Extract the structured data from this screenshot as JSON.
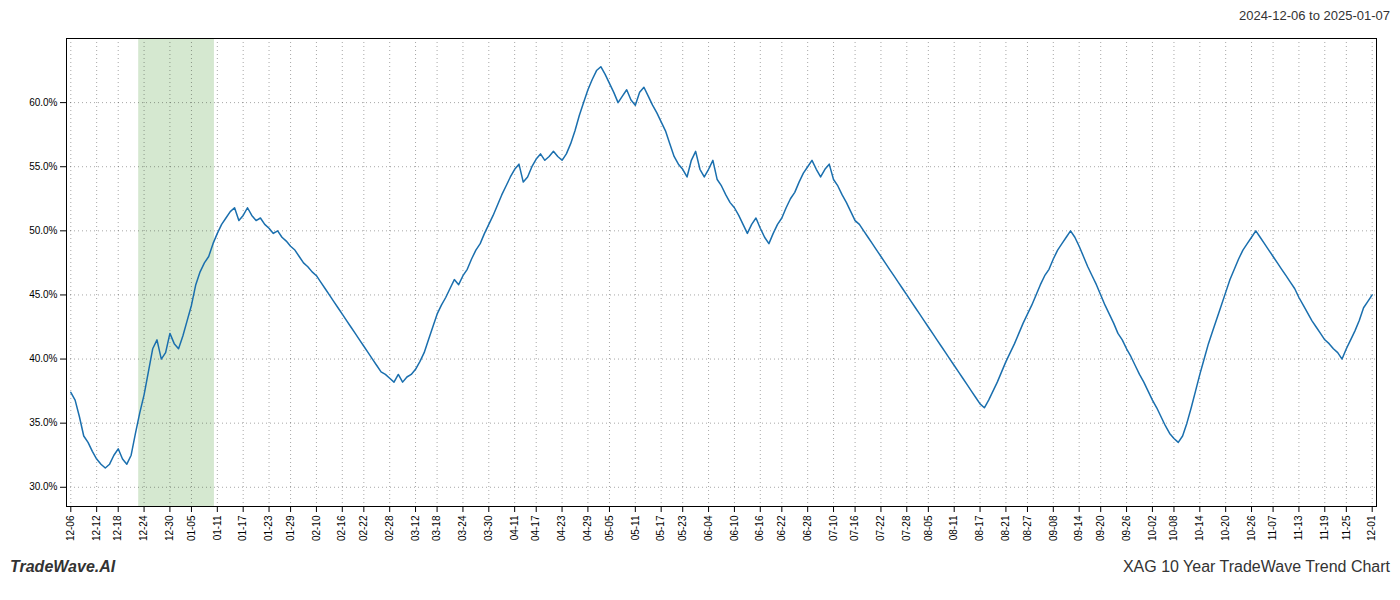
{
  "chart_data": {
    "type": "line",
    "title": "XAG 10 Year TradeWave Trend Chart",
    "subtitle": "2024-12-06 to 2025-01-07",
    "annotations": [
      "TradeWave.AI"
    ],
    "color": "#1a6fae",
    "grid": true,
    "ylim": [
      0.285,
      0.65
    ],
    "yticks": [
      {
        "value": 0.3,
        "label": "30.0%"
      },
      {
        "value": 0.35,
        "label": "35.0%"
      },
      {
        "value": 0.4,
        "label": "40.0%"
      },
      {
        "value": 0.45,
        "label": "45.0%"
      },
      {
        "value": 0.5,
        "label": "50.0%"
      },
      {
        "value": 0.55,
        "label": "55.0%"
      },
      {
        "value": 0.6,
        "label": "60.0%"
      }
    ],
    "shade": {
      "x": [
        15.756,
        33.33
      ],
      "color": "#d5e8d0"
    },
    "categories": [
      "12-06",
      null,
      null,
      null,
      null,
      null,
      "12-12",
      null,
      null,
      null,
      null,
      "12-18",
      null,
      null,
      null,
      null,
      null,
      "12-24",
      null,
      null,
      null,
      null,
      null,
      "12-30",
      null,
      null,
      null,
      null,
      "01-05",
      null,
      null,
      null,
      null,
      null,
      "01-11",
      null,
      null,
      null,
      null,
      null,
      "01-17",
      null,
      null,
      null,
      null,
      null,
      "01-23",
      null,
      null,
      null,
      null,
      "01-29",
      null,
      null,
      null,
      null,
      null,
      "02-10",
      null,
      null,
      null,
      null,
      null,
      "02-16",
      null,
      null,
      null,
      null,
      "02-22",
      null,
      null,
      null,
      null,
      null,
      "02-28",
      null,
      null,
      null,
      null,
      null,
      "03-12",
      null,
      null,
      null,
      null,
      "03-18",
      null,
      null,
      null,
      null,
      null,
      "03-24",
      null,
      null,
      null,
      null,
      null,
      "03-30",
      null,
      null,
      null,
      null,
      null,
      "04-11",
      null,
      null,
      null,
      null,
      "04-17",
      null,
      null,
      null,
      null,
      null,
      "04-23",
      null,
      null,
      null,
      null,
      null,
      "04-29",
      null,
      null,
      null,
      null,
      "05-05",
      null,
      null,
      null,
      null,
      null,
      "05-11",
      null,
      null,
      null,
      null,
      null,
      "05-17",
      null,
      null,
      null,
      null,
      "05-23",
      null,
      null,
      null,
      null,
      null,
      "06-04",
      null,
      null,
      null,
      null,
      null,
      "06-10",
      null,
      null,
      null,
      null,
      null,
      "06-16",
      null,
      null,
      null,
      null,
      "06-22",
      null,
      null,
      null,
      null,
      null,
      "06-28",
      null,
      null,
      null,
      null,
      null,
      "07-10",
      null,
      null,
      null,
      null,
      "07-16",
      null,
      null,
      null,
      null,
      null,
      "07-22",
      null,
      null,
      null,
      null,
      null,
      "07-28",
      null,
      null,
      null,
      null,
      "08-05",
      null,
      null,
      null,
      null,
      null,
      "08-11",
      null,
      null,
      null,
      null,
      null,
      "08-17",
      null,
      null,
      null,
      null,
      null,
      "08-21",
      null,
      null,
      null,
      null,
      "08-27",
      null,
      null,
      null,
      null,
      null,
      "09-08",
      null,
      null,
      null,
      null,
      null,
      "09-14",
      null,
      null,
      null,
      null,
      "09-20",
      null,
      null,
      null,
      null,
      null,
      "09-26",
      null,
      null,
      null,
      null,
      null,
      "10-02",
      null,
      null,
      null,
      null,
      "10-08",
      null,
      null,
      null,
      null,
      null,
      "10-14",
      null,
      null,
      null,
      null,
      null,
      "10-20",
      null,
      null,
      null,
      null,
      null,
      "10-26",
      null,
      null,
      null,
      null,
      "11-07",
      null,
      null,
      null,
      null,
      null,
      "11-13",
      null,
      null,
      null,
      null,
      null,
      "11-19",
      null,
      null,
      null,
      null,
      "11-25",
      null,
      null,
      null,
      null,
      null,
      "12-01"
    ],
    "values": [
      0.374,
      0.368,
      0.355,
      0.34,
      0.335,
      0.328,
      0.322,
      0.318,
      0.315,
      0.318,
      0.325,
      0.33,
      0.322,
      0.318,
      0.325,
      0.342,
      0.358,
      0.372,
      0.39,
      0.408,
      0.415,
      0.4,
      0.405,
      0.42,
      0.412,
      0.408,
      0.418,
      0.43,
      0.442,
      0.458,
      0.468,
      0.475,
      0.48,
      0.49,
      0.498,
      0.505,
      0.51,
      0.515,
      0.518,
      0.508,
      0.512,
      0.518,
      0.512,
      0.508,
      0.51,
      0.505,
      0.502,
      0.498,
      0.5,
      0.495,
      0.492,
      0.488,
      0.485,
      0.48,
      0.475,
      0.472,
      0.468,
      0.465,
      0.46,
      0.455,
      0.45,
      0.445,
      0.44,
      0.435,
      0.43,
      0.425,
      0.42,
      0.415,
      0.41,
      0.405,
      0.4,
      0.395,
      0.39,
      0.388,
      0.385,
      0.382,
      0.388,
      0.382,
      0.386,
      0.388,
      0.392,
      0.398,
      0.405,
      0.415,
      0.425,
      0.435,
      0.442,
      0.448,
      0.455,
      0.462,
      0.458,
      0.465,
      0.47,
      0.478,
      0.485,
      0.49,
      0.498,
      0.505,
      0.512,
      0.52,
      0.528,
      0.535,
      0.542,
      0.548,
      0.552,
      0.538,
      0.542,
      0.55,
      0.556,
      0.56,
      0.555,
      0.558,
      0.562,
      0.558,
      0.555,
      0.56,
      0.568,
      0.578,
      0.59,
      0.6,
      0.61,
      0.618,
      0.625,
      0.628,
      0.622,
      0.615,
      0.608,
      0.6,
      0.605,
      0.61,
      0.602,
      0.598,
      0.608,
      0.612,
      0.605,
      0.598,
      0.592,
      0.585,
      0.578,
      0.568,
      0.558,
      0.552,
      0.548,
      0.542,
      0.555,
      0.562,
      0.548,
      0.542,
      0.548,
      0.555,
      0.54,
      0.535,
      0.528,
      0.522,
      0.518,
      0.512,
      0.505,
      0.498,
      0.505,
      0.51,
      0.502,
      0.495,
      0.49,
      0.498,
      0.505,
      0.51,
      0.518,
      0.525,
      0.53,
      0.538,
      0.545,
      0.55,
      0.555,
      0.548,
      0.542,
      0.548,
      0.552,
      0.54,
      0.535,
      0.528,
      0.522,
      0.515,
      0.508,
      0.505,
      0.5,
      0.495,
      0.49,
      0.485,
      0.48,
      0.475,
      0.47,
      0.465,
      0.46,
      0.455,
      0.45,
      0.445,
      0.44,
      0.435,
      0.43,
      0.425,
      0.42,
      0.415,
      0.41,
      0.405,
      0.4,
      0.395,
      0.39,
      0.385,
      0.38,
      0.375,
      0.37,
      0.365,
      0.362,
      0.368,
      0.375,
      0.382,
      0.39,
      0.398,
      0.405,
      0.412,
      0.42,
      0.428,
      0.435,
      0.442,
      0.45,
      0.458,
      0.465,
      0.47,
      0.478,
      0.485,
      0.49,
      0.495,
      0.5,
      0.495,
      0.488,
      0.48,
      0.472,
      0.465,
      0.458,
      0.45,
      0.442,
      0.435,
      0.428,
      0.42,
      0.415,
      0.408,
      0.402,
      0.395,
      0.388,
      0.382,
      0.375,
      0.368,
      0.362,
      0.355,
      0.348,
      0.342,
      0.338,
      0.335,
      0.34,
      0.35,
      0.362,
      0.375,
      0.388,
      0.4,
      0.412,
      0.422,
      0.432,
      0.442,
      0.452,
      0.462,
      0.47,
      0.478,
      0.485,
      0.49,
      0.495,
      0.5,
      0.495,
      0.49,
      0.485,
      0.48,
      0.475,
      0.47,
      0.465,
      0.46,
      0.455,
      0.448,
      0.442,
      0.436,
      0.43,
      0.425,
      0.42,
      0.415,
      0.412,
      0.408,
      0.405,
      0.4,
      0.408,
      0.415,
      0.422,
      0.43,
      0.44,
      0.445,
      0.45
    ]
  }
}
